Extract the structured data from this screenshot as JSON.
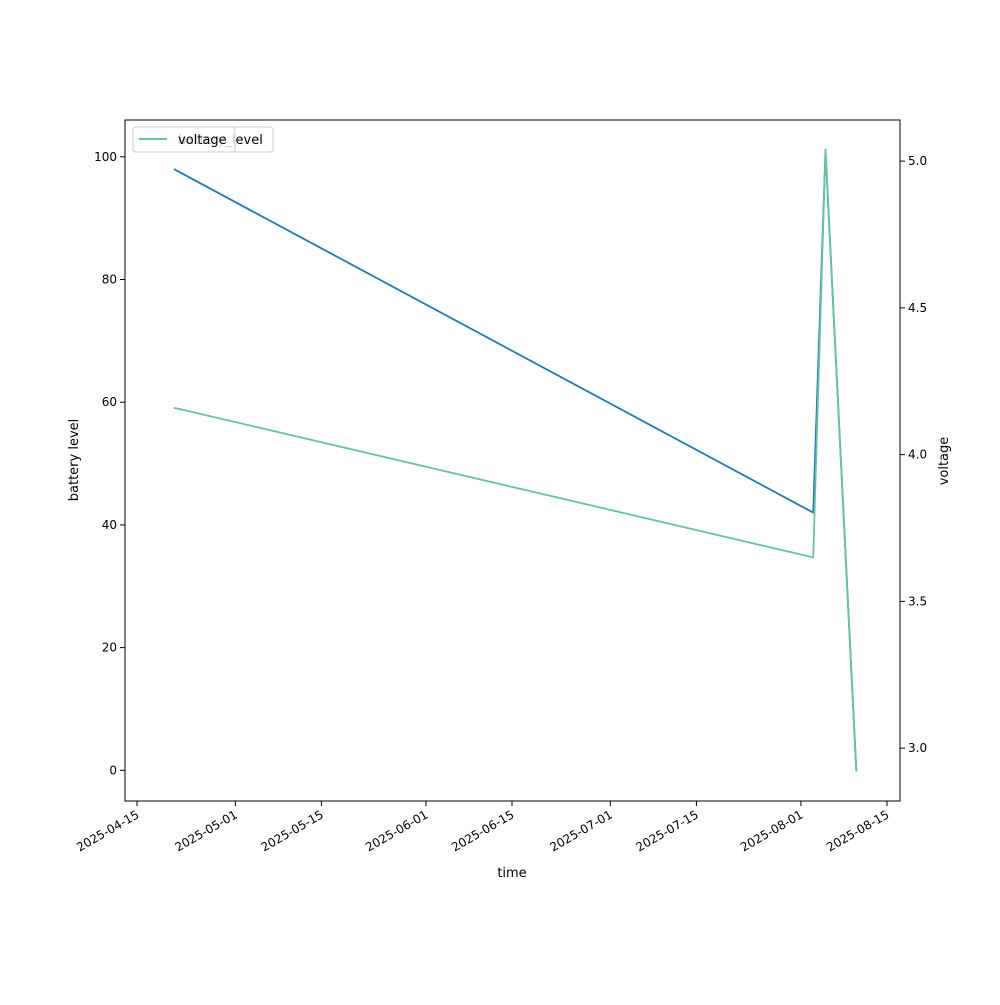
{
  "chart_data": {
    "type": "line",
    "xlabel": "time",
    "ylabel": "battery level",
    "y2label": "voltage",
    "x_ticks": [
      "2025-04-15",
      "2025-05-01",
      "2025-05-15",
      "2025-06-01",
      "2025-06-15",
      "2025-07-01",
      "2025-07-15",
      "2025-08-01",
      "2025-08-15"
    ],
    "y_ticks": [
      0,
      20,
      40,
      60,
      80,
      100
    ],
    "y2_ticks": [
      3.0,
      3.5,
      4.0,
      4.5,
      5.0
    ],
    "xlim": [
      "2025-04-15",
      "2025-08-15"
    ],
    "ylim": [
      -5,
      106
    ],
    "y2lim": [
      2.82,
      5.14
    ],
    "grid": false,
    "legend": {
      "placement": "upper-left",
      "entries": [
        "battery_level",
        "voltage"
      ]
    },
    "series": [
      {
        "name": "battery_level",
        "axis": "left",
        "color": "#1f77b4",
        "x": [
          "2025-04-21",
          "2025-08-03",
          "2025-08-05",
          "2025-08-10"
        ],
        "values": [
          98,
          42,
          101,
          0
        ]
      },
      {
        "name": "voltage",
        "axis": "right",
        "color": "#66c2a5",
        "x": [
          "2025-04-21",
          "2025-08-03",
          "2025-08-05",
          "2025-08-10"
        ],
        "values": [
          4.16,
          3.65,
          5.04,
          2.92
        ]
      }
    ]
  }
}
